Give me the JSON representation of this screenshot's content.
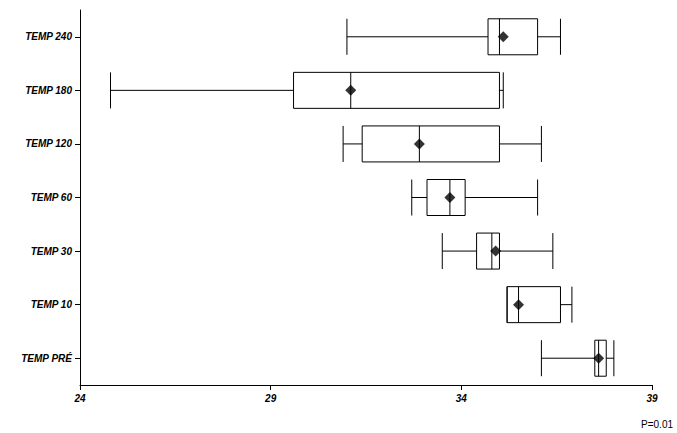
{
  "chart_data": {
    "type": "boxplot",
    "orientation": "horizontal",
    "categories": [
      "TEMP PRÉ",
      "TEMP 10",
      "TEMP 30",
      "TEMP 60",
      "TEMP 120",
      "TEMP 180",
      "TEMP 240"
    ],
    "boxes": [
      [
        36.1,
        37.5,
        37.6,
        37.8,
        38.0
      ],
      [
        35.2,
        35.2,
        35.5,
        36.6,
        36.9
      ],
      [
        33.5,
        34.4,
        34.8,
        35.0,
        36.4
      ],
      [
        32.7,
        33.1,
        33.7,
        34.1,
        36.0
      ],
      [
        30.9,
        31.4,
        32.9,
        35.0,
        36.1
      ],
      [
        24.8,
        29.6,
        31.1,
        35.0,
        35.1
      ],
      [
        31.0,
        34.7,
        35.0,
        36.0,
        36.6
      ]
    ],
    "means": [
      37.6,
      35.5,
      34.9,
      33.7,
      32.9,
      31.1,
      35.1
    ],
    "marker": "diamond",
    "color": "#000000",
    "xlim": [
      24,
      39
    ],
    "xticks": [
      24,
      29,
      34,
      39
    ],
    "grid": false,
    "annotations": [
      "P=0.01"
    ]
  }
}
